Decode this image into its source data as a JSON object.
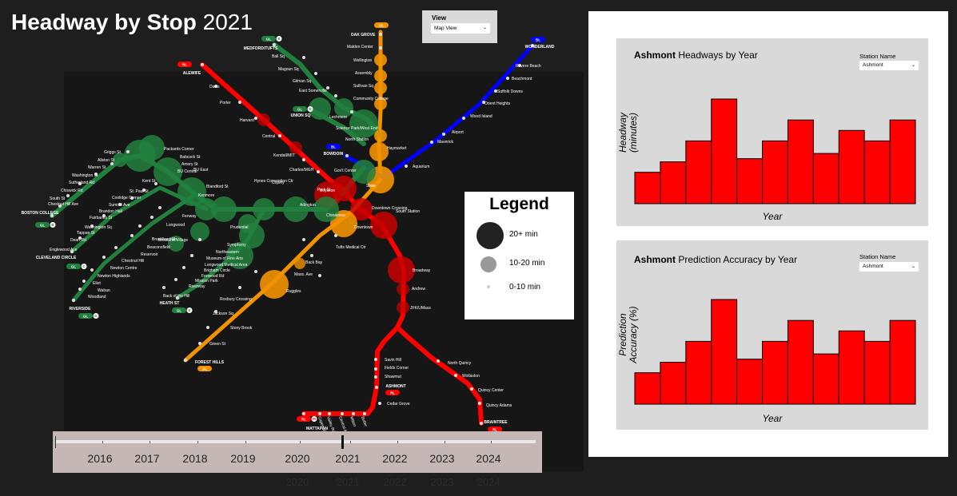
{
  "title": {
    "bold": "Headway by Stop",
    "year": "2021"
  },
  "view": {
    "label": "View",
    "selected": "Map View"
  },
  "legend": {
    "title": "Legend",
    "items": [
      {
        "label": "20+ min"
      },
      {
        "label": "10-20 min"
      },
      {
        "label": "0-10 min"
      }
    ]
  },
  "timeline": {
    "years": [
      "2016",
      "2017",
      "2018",
      "2019",
      "2020",
      "2021",
      "2022",
      "2023",
      "2024"
    ],
    "selected": "2021",
    "ghost_years": [
      "2020",
      "2021",
      "2022",
      "2023",
      "2024"
    ]
  },
  "terminals": {
    "alewife": {
      "name": "ALEWIFE",
      "badge": "RL"
    },
    "oak_grove": {
      "name": "OAK GROVE",
      "badge": "OL"
    },
    "wonderland": {
      "name": "WONDERLAND",
      "badge": "BL"
    },
    "medford": {
      "name": "MEDFORD/TUFTS",
      "badge": "GL",
      "branch": "E"
    },
    "union": {
      "name": "UNION SQ",
      "badge": "GL",
      "branch": "D"
    },
    "bowdoin": {
      "name": "BOWDOIN",
      "badge": "BL"
    },
    "boston_college": {
      "name": "BOSTON COLLEGE",
      "badge": "GL",
      "branch": "B"
    },
    "cleveland": {
      "name": "CLEVELAND CIRCLE",
      "badge": "GL",
      "branch": "C"
    },
    "riverside": {
      "name": "RIVERSIDE",
      "badge": "GL",
      "branch": "D"
    },
    "heath": {
      "name": "HEATH ST",
      "badge": "GL",
      "branch": "E"
    },
    "forest_hills": {
      "name": "FOREST HILLS",
      "badge": "OL"
    },
    "ashmont": {
      "name": "ASHMONT",
      "badge": "RL"
    },
    "braintree": {
      "name": "BRAINTREE",
      "badge": "RL"
    },
    "mattapan": {
      "name": "MATTAPAN",
      "badge": "RL",
      "branch": "M"
    }
  },
  "station_labels": {
    "red": [
      "Davis",
      "Porter",
      "Harvard",
      "Central",
      "Kendall/MIT",
      "Charles/MGH",
      "Park St",
      "Downtown Crossing",
      "South Station",
      "Broadway",
      "Andrew",
      "JFK/UMass",
      "Savin Hill",
      "Fields Corner",
      "Shawmut",
      "Cedar Grove",
      "North Quincy",
      "Wollaston",
      "Quincy Center",
      "Quincy Adams",
      "Capen St",
      "Valley Rd",
      "Central Ave",
      "Milton",
      "Butler"
    ],
    "orange": [
      "Malden Center",
      "Wellington",
      "Assembly",
      "Sullivan Sq",
      "Community College",
      "North Station",
      "Haymarket",
      "State",
      "Downtown",
      "Chinatown",
      "Tufts Medical Ctr",
      "Back Bay",
      "Mass. Ave",
      "Ruggles",
      "Roxbury Crossing",
      "Jackson Sq",
      "Stony Brook",
      "Green St"
    ],
    "blue": [
      "Revere Beach",
      "Beachmont",
      "Suffolk Downs",
      "Orient Heights",
      "Wood Island",
      "Airport",
      "Maverick",
      "Aquarium",
      "Gov't Center"
    ],
    "green": [
      "Ball Sq",
      "Magoun Sq",
      "Gilman Sq",
      "East Somerville",
      "Lechmere",
      "Science Park/West End",
      "Boylston",
      "Arlington",
      "Copley",
      "Hynes Convention Ctr",
      "Kenmore",
      "Prudential",
      "Symphony",
      "Northeastern",
      "Museum of Fine Arts",
      "Longwood Medical Area",
      "Brigham Circle",
      "Fenwood Rd",
      "Mission Park",
      "Riverway",
      "Back of the Hill",
      "Fenway",
      "Longwood",
      "Brookline Village",
      "Brookline Hills",
      "Beaconsfield",
      "Reservoir",
      "Chestnut Hill",
      "Newton Centre",
      "Newton Highlands",
      "Eliot",
      "Waban",
      "Woodland",
      "Kent St",
      "St. Paul St",
      "Coolidge Corner",
      "Summit Ave",
      "Brandon Hall",
      "Fairbanks St",
      "Washington Sq",
      "Tappan St",
      "Dean Rd",
      "Englewood Ave",
      "Griggs St",
      "Allston St",
      "Warren St",
      "Washington St",
      "Sutherland Rd",
      "Chiswick Rd",
      "Chestnut Hill Ave",
      "South St",
      "Packards Corner",
      "Babcock St",
      "Amory St",
      "BU Central",
      "BU East",
      "Blandford St"
    ]
  },
  "headway_chart": {
    "title_bold": "Ashmont",
    "title_rest": "Headways by Year",
    "station_label": "Station Name",
    "station_selected": "Ashmont",
    "ylabel_line1": "Headway",
    "ylabel_line2": "(minutes)",
    "xlabel": "Year"
  },
  "accuracy_chart": {
    "title_bold": "Ashmont",
    "title_rest": "Prediction Accuracy by Year",
    "station_label": "Station Name",
    "station_selected": "Ashmont",
    "ylabel_line1": "Prediction",
    "ylabel_line2": "Accuracy (%)",
    "xlabel": "Year"
  },
  "chart_data": [
    {
      "type": "bar",
      "title": "Ashmont Headways by Year",
      "xlabel": "Year",
      "ylabel": "Headway (minutes)",
      "values": [
        3,
        4,
        6,
        10,
        4.3,
        6,
        8,
        4.8,
        7,
        6,
        8
      ],
      "ylim": [
        0,
        10
      ],
      "color": "#ff0000",
      "grid": false
    },
    {
      "type": "bar",
      "title": "Ashmont Prediction Accuracy by Year",
      "xlabel": "Year",
      "ylabel": "Prediction Accuracy (%)",
      "values": [
        3,
        4,
        6,
        10,
        4.3,
        6,
        8,
        4.8,
        7,
        6,
        8
      ],
      "ylim": [
        0,
        10
      ],
      "color": "#ff0000",
      "grid": false
    }
  ],
  "colors": {
    "red_line": "#ff0000",
    "orange_line": "#f39200",
    "blue_line": "#0000ff",
    "green_line": "#22803e",
    "bubble_large": "#222222",
    "bubble_medium": "#999999",
    "bubble_small": "#cccccc"
  }
}
